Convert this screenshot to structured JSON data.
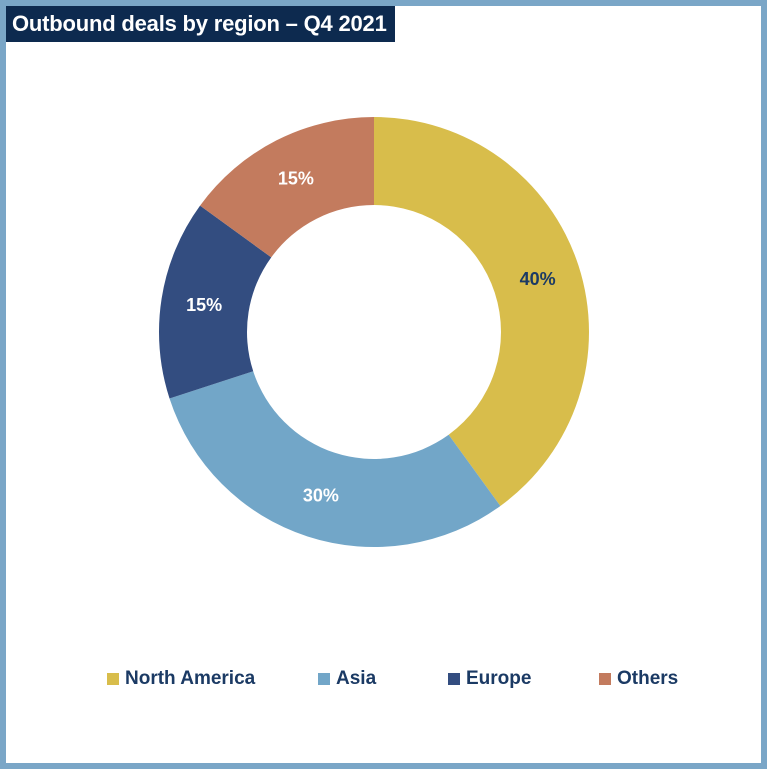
{
  "chart_data": {
    "type": "pie",
    "variant": "donut",
    "title": "Outbound deals by region – Q4 2021",
    "categories": [
      "North America",
      "Asia",
      "Europe",
      "Others"
    ],
    "values": [
      40,
      30,
      15,
      15
    ],
    "labels": [
      "40%",
      "30%",
      "15%",
      "15%"
    ],
    "unit": "%",
    "colors": [
      "#d8bd4b",
      "#72a6c8",
      "#334d80",
      "#c37b5e"
    ],
    "label_colors": [
      "#1b3a64",
      "#ffffff",
      "#ffffff",
      "#ffffff"
    ],
    "legend_position": "bottom",
    "start_angle_deg": 0,
    "direction": "clockwise"
  }
}
